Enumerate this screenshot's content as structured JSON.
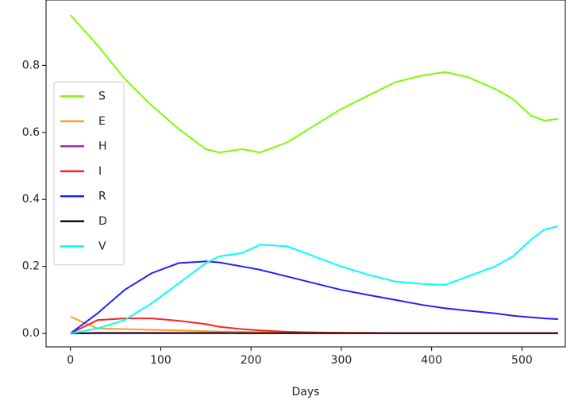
{
  "chart_data": {
    "type": "line",
    "xlabel": "Days",
    "x": [
      0,
      30,
      60,
      90,
      120,
      150,
      165,
      190,
      210,
      240,
      270,
      300,
      330,
      360,
      390,
      415,
      440,
      470,
      490,
      510,
      525,
      540
    ],
    "series": [
      {
        "name": "S",
        "color": "#7cfc00",
        "values": [
          0.95,
          0.86,
          0.76,
          0.68,
          0.61,
          0.55,
          0.54,
          0.55,
          0.54,
          0.57,
          0.62,
          0.67,
          0.71,
          0.75,
          0.77,
          0.78,
          0.765,
          0.73,
          0.7,
          0.65,
          0.635,
          0.64
        ]
      },
      {
        "name": "E",
        "color": "#ff9a1f",
        "values": [
          0.05,
          0.015,
          0.013,
          0.011,
          0.009,
          0.007,
          0.006,
          0.005,
          0.004,
          0.003,
          0.002,
          0.002,
          0.001,
          0.001,
          0.001,
          0.001,
          0.001,
          0.001,
          0.001,
          0.001,
          0.001,
          0.001
        ]
      },
      {
        "name": "H",
        "color": "#9b30a8",
        "values": [
          0,
          0.002,
          0.002,
          0.002,
          0.002,
          0.002,
          0.002,
          0.001,
          0.001,
          0.001,
          0.001,
          0.001,
          0.001,
          0.001,
          0.001,
          0.001,
          0.001,
          0.001,
          0.001,
          0.001,
          0.001,
          0.001
        ]
      },
      {
        "name": "I",
        "color": "#ff2020",
        "values": [
          0,
          0.04,
          0.045,
          0.045,
          0.038,
          0.028,
          0.02,
          0.013,
          0.009,
          0.005,
          0.003,
          0.002,
          0.002,
          0.001,
          0.001,
          0.001,
          0.001,
          0.001,
          0.001,
          0.001,
          0.001,
          0.001
        ]
      },
      {
        "name": "R",
        "color": "#2020ff",
        "values": [
          0,
          0.06,
          0.13,
          0.18,
          0.21,
          0.215,
          0.212,
          0.2,
          0.19,
          0.17,
          0.15,
          0.13,
          0.115,
          0.1,
          0.085,
          0.075,
          0.068,
          0.06,
          0.053,
          0.048,
          0.045,
          0.043
        ]
      },
      {
        "name": "D",
        "color": "#111111",
        "values": [
          0,
          0.001,
          0.001,
          0.001,
          0.001,
          0.001,
          0.001,
          0.001,
          0.001,
          0.001,
          0.001,
          0.001,
          0.001,
          0.001,
          0.001,
          0.001,
          0.001,
          0.001,
          0.001,
          0.001,
          0.001,
          0.001
        ]
      },
      {
        "name": "V",
        "color": "#00ffff",
        "values": [
          0,
          0.015,
          0.04,
          0.09,
          0.15,
          0.21,
          0.23,
          0.24,
          0.265,
          0.26,
          0.23,
          0.2,
          0.175,
          0.155,
          0.148,
          0.145,
          0.17,
          0.2,
          0.23,
          0.28,
          0.31,
          0.32
        ]
      }
    ],
    "xlim": [
      -27,
      548
    ],
    "xticks": [
      0,
      100,
      200,
      300,
      400,
      500
    ],
    "ylim": [
      -0.04,
      0.995
    ],
    "yticks": [
      {
        "value": 0,
        "label": "0.0"
      },
      {
        "value": 0.2,
        "label": "0.2"
      },
      {
        "value": 0.4,
        "label": "0.4"
      },
      {
        "value": 0.6,
        "label": "0.6"
      },
      {
        "value": 0.8,
        "label": "0.8"
      }
    ],
    "legend": "center left"
  }
}
